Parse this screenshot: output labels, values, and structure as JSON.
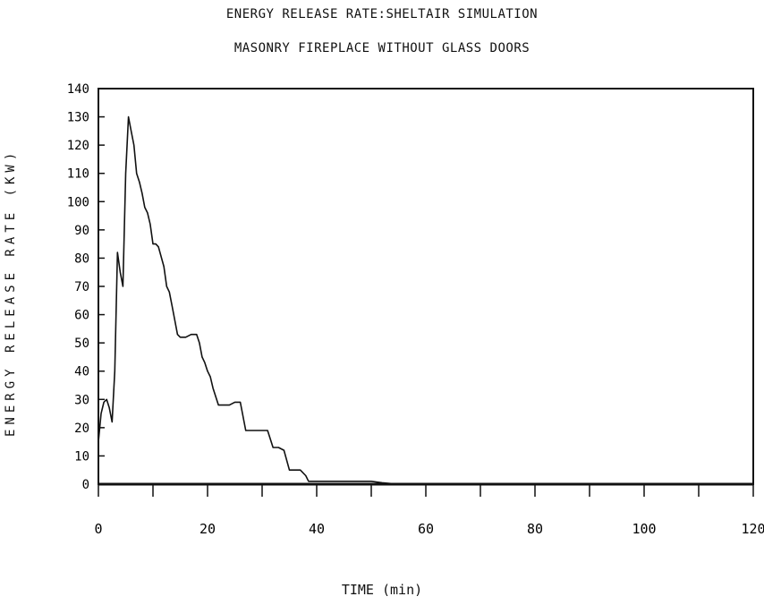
{
  "chart_data": {
    "type": "line",
    "title": "ENERGY RELEASE RATE:SHELTAIR SIMULATION",
    "subtitle": "MASONRY FIREPLACE WITHOUT GLASS DOORS",
    "xlabel": "TIME (min)",
    "ylabel": "ENERGY RELEASE RATE (KW)",
    "xlim": [
      0,
      120
    ],
    "ylim": [
      0,
      140
    ],
    "xticks": [
      "0",
      "20",
      "40",
      "60",
      "80",
      "100",
      "120"
    ],
    "yticks": [
      "0",
      "10",
      "20",
      "30",
      "40",
      "50",
      "60",
      "70",
      "80",
      "90",
      "100",
      "110",
      "120",
      "130",
      "140"
    ],
    "grid": false,
    "series": [
      {
        "x": [
          0,
          0.5,
          1,
          1.5,
          2,
          2.5,
          3,
          3.5,
          4,
          4.5,
          5,
          5.5,
          6,
          6.5,
          7,
          7.5,
          8,
          8.5,
          9,
          9.5,
          10,
          10.5,
          11,
          12,
          12.5,
          13,
          13.5,
          14,
          14.5,
          15,
          16,
          17,
          18,
          18.5,
          19,
          19.5,
          20,
          20.5,
          21,
          22,
          23,
          24,
          25,
          26,
          27,
          28,
          29,
          30,
          31,
          32,
          33,
          34,
          35,
          36,
          37,
          38,
          38.5,
          39,
          40,
          45,
          50,
          52,
          55,
          60,
          80,
          100,
          120
        ],
        "y": [
          15,
          25,
          29,
          30,
          27,
          22,
          40,
          82,
          75,
          70,
          110,
          130,
          125,
          120,
          110,
          107,
          103,
          98,
          96,
          92,
          85,
          85,
          84,
          77,
          70,
          68,
          63,
          58,
          53,
          52,
          52,
          53,
          53,
          50,
          45,
          43,
          40,
          38,
          34,
          28,
          28,
          28,
          29,
          29,
          19,
          19,
          19,
          19,
          19,
          13,
          13,
          12,
          5,
          5,
          5,
          3,
          1,
          1,
          1,
          1,
          1,
          0.5,
          0,
          0,
          0,
          0,
          0
        ]
      }
    ]
  }
}
